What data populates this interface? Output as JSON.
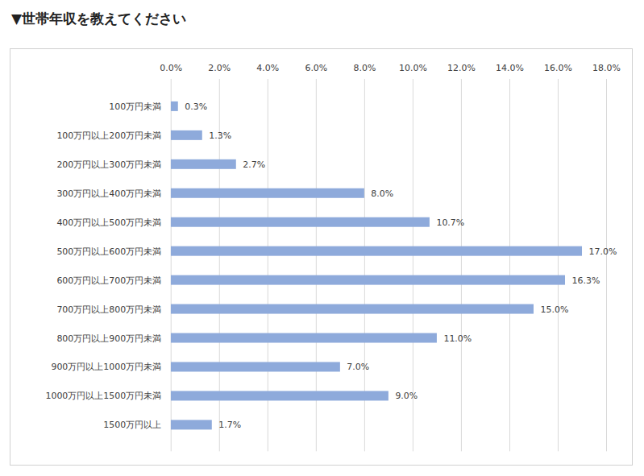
{
  "chart_data": {
    "type": "bar",
    "title": "▼世帯年収を教えてください",
    "orientation": "horizontal",
    "categories": [
      "100万円未満",
      "100万円以上200万円未満",
      "200万円以上300万円未満",
      "300万円以上400万円未満",
      "400万円以上500万円未満",
      "500万円以上600万円未満",
      "600万円以上700万円未満",
      "700万円以上800万円未満",
      "800万円以上900万円未満",
      "900万円以上1000万円未満",
      "1000万円以上1500万円未満",
      "1500万円以上"
    ],
    "values": [
      0.3,
      1.3,
      2.7,
      8.0,
      10.7,
      17.0,
      16.3,
      15.0,
      11.0,
      7.0,
      9.0,
      1.7
    ],
    "value_labels": [
      "0.3%",
      "1.3%",
      "2.7%",
      "8.0%",
      "10.7%",
      "17.0%",
      "16.3%",
      "15.0%",
      "11.0%",
      "7.0%",
      "9.0%",
      "1.7%"
    ],
    "color": "#8eaadb",
    "xlim": [
      0,
      18
    ],
    "xticks": [
      {
        "value": 0,
        "label": "0.0%"
      },
      {
        "value": 2,
        "label": "2.0%"
      },
      {
        "value": 4,
        "label": "4.0%"
      },
      {
        "value": 6,
        "label": "6.0%"
      },
      {
        "value": 8,
        "label": "8.0%"
      },
      {
        "value": 10,
        "label": "10.0%"
      },
      {
        "value": 12,
        "label": "12.0%"
      },
      {
        "value": 14,
        "label": "14.0%"
      },
      {
        "value": 16,
        "label": "16.0%"
      },
      {
        "value": 18,
        "label": "18.0%"
      }
    ],
    "grid": true,
    "data_labels": true
  }
}
